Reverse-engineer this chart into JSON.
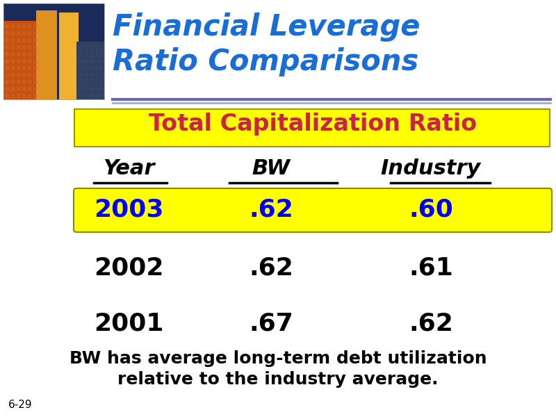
{
  "title_line1": "Financial Leverage",
  "title_line2": "Ratio Comparisons",
  "title_color": "#1a6dd4",
  "subtitle": "Total Capitalization Ratio",
  "subtitle_bg": "#ffff00",
  "subtitle_text_color": "#cc2244",
  "header_year": "Year",
  "header_bw": "BW",
  "header_industry": "Industry",
  "rows": [
    {
      "year": "2003",
      "bw": ".62",
      "industry": ".60",
      "highlight": true
    },
    {
      "year": "2002",
      "bw": ".62",
      "industry": ".61",
      "highlight": false
    },
    {
      "year": "2001",
      "bw": ".67",
      "industry": ".62",
      "highlight": false
    }
  ],
  "highlight_bg": "#ffff00",
  "highlight_text_color": "#0000ff",
  "normal_color": "#000000",
  "footer_line1": "BW has average long-term debt utilization",
  "footer_line2": "relative to the industry average.",
  "footer_color": "#000000",
  "slide_number": "6-29",
  "bg_color": "#ffffff",
  "header_underline_color": "#000000",
  "title_underline_color": "#6666bb",
  "title_underline_color2": "#aaaacc",
  "img_sky": "#1a2a5a",
  "img_b1": "#c85010",
  "img_b2": "#e09020",
  "img_b3": "#d07818",
  "img_b4": "#f0b030",
  "img_b5": "#304060"
}
